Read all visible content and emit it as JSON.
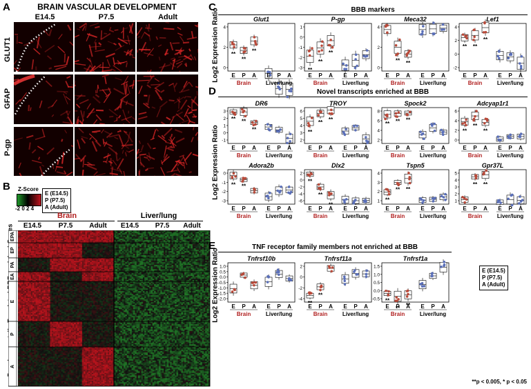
{
  "panels": {
    "a": "A",
    "b": "B",
    "c": "C",
    "d": "D",
    "e": "E"
  },
  "panel_a": {
    "title": "BRAIN VASCULAR DEVELOPMENT",
    "columns": [
      "E14.5",
      "P7.5",
      "Adult"
    ],
    "rows": [
      "GLUT1",
      "GFAP",
      "P-gp"
    ]
  },
  "panel_b": {
    "zscore_title": "Z-Score",
    "zscore_ticks": "-2 0 2 4",
    "legend_lines": [
      "E (E14.5)",
      "P (P7.5)",
      "A (Adult)"
    ],
    "group_brain": "Brain",
    "group_liver": "Liver/lung",
    "columns": [
      "E14.5",
      "P7.5",
      "Adult",
      "E14.5",
      "P7.5",
      "Adult"
    ],
    "row_groups": [
      "EPA",
      "EP",
      "PA",
      "EA",
      "E",
      "P",
      "A"
    ],
    "ylabel": "Developmentally Regulated BBB-enriched Genes",
    "colors": {
      "high": "#c0141e",
      "low": "#1f9a2a",
      "mid": "#111111"
    }
  },
  "ylabel_expr": "Log2 Expression Ratio",
  "x_cats": [
    "E",
    "P",
    "A",
    "E",
    "P",
    "A"
  ],
  "brain_label": "Brain",
  "liver_label": "Liver/lung",
  "colors": {
    "brain": "#b84a3a",
    "liver": "#5a6fb8",
    "brain_text": "#b01e1e"
  },
  "panel_c": {
    "title": "BBB markers"
  },
  "panel_d": {
    "title": "Novel transcripts enriched at BBB"
  },
  "panel_e": {
    "title": "TNF receptor family members not enriched at BBB",
    "legend_lines": [
      "E (E14.5)",
      "P (P7.5)",
      "A (Adult)"
    ]
  },
  "footnote": "**p < 0.005, * p < 0.05",
  "chart_data": [
    {
      "type": "box",
      "gene": "Glut1",
      "ticks": [
        "4",
        "2",
        "0"
      ],
      "ylim": [
        -1,
        5
      ],
      "medians": [
        2.3,
        1.6,
        2.8,
        -1.3,
        -3.2,
        -3.3
      ],
      "stars": [
        "**",
        "**",
        "**",
        "",
        "",
        ""
      ]
    },
    {
      "type": "box",
      "gene": "P-gp",
      "ticks": [
        "1",
        "0",
        "-1",
        "-2",
        "-3"
      ],
      "ylim": [
        -4,
        1.8
      ],
      "medians": [
        -2.2,
        -1.2,
        -0.3,
        -3.3,
        -2.7,
        -2.0
      ],
      "stars": [
        "**",
        "**",
        "**",
        "",
        "",
        ""
      ]
    },
    {
      "type": "box",
      "gene": "Meca32",
      "ticks": [
        "4",
        "2",
        "0"
      ],
      "ylim": [
        -1.5,
        5.5
      ],
      "medians": [
        4.6,
        2.0,
        1.0,
        4.6,
        4.7,
        4.8
      ],
      "stars": [
        "",
        "**",
        "**",
        "",
        "",
        ""
      ]
    },
    {
      "type": "box",
      "gene": "Lef1",
      "ticks": [
        "4",
        "2",
        "0",
        "-2"
      ],
      "ylim": [
        -3,
        5
      ],
      "medians": [
        2.6,
        3.0,
        4.3,
        -0.4,
        -0.6,
        -1.7
      ],
      "stars": [
        "**",
        "**",
        "**",
        "",
        "",
        ""
      ]
    },
    {
      "type": "box",
      "gene": "DR6",
      "ticks": [
        "3",
        "2",
        "1",
        "0",
        "-1"
      ],
      "ylim": [
        -1.7,
        3.3
      ],
      "medians": [
        2.7,
        2.7,
        1.2,
        0.6,
        0.2,
        -1.0
      ],
      "stars": [
        "**",
        "**",
        "**",
        "",
        "",
        ""
      ]
    },
    {
      "type": "box",
      "gene": "TROY",
      "ticks": [
        "6",
        "5",
        "4",
        "3",
        "2"
      ],
      "ylim": [
        1.5,
        7
      ],
      "medians": [
        4.9,
        6.1,
        6.6,
        3.4,
        3.9,
        2.2
      ],
      "stars": [
        "**",
        "**",
        "**",
        "",
        "",
        ""
      ]
    },
    {
      "type": "box",
      "gene": "Spock2",
      "ticks": [
        "8",
        "6",
        "4",
        "2"
      ],
      "ylim": [
        0.5,
        9
      ],
      "medians": [
        7.4,
        7.6,
        7.7,
        2.6,
        4.2,
        3.2
      ],
      "stars": [
        "**",
        "**",
        "**",
        "",
        "",
        ""
      ]
    },
    {
      "type": "box",
      "gene": "Adcyap1r1",
      "ticks": [
        "6",
        "4",
        "2",
        "0"
      ],
      "ylim": [
        -0.7,
        7.5
      ],
      "medians": [
        4.3,
        5.6,
        4.1,
        0.3,
        0.9,
        0.9
      ],
      "stars": [
        "**",
        "**",
        "**",
        "",
        "",
        ""
      ]
    },
    {
      "type": "box",
      "gene": "Adora2b",
      "ticks": [
        "0",
        "-1",
        "-2",
        "-3"
      ],
      "ylim": [
        -3.5,
        0.6
      ],
      "medians": [
        -0.1,
        -0.6,
        -1.9,
        -2.6,
        -1.9,
        -1.8
      ],
      "stars": [
        "**",
        "**",
        "",
        "",
        "",
        ""
      ]
    },
    {
      "type": "box",
      "gene": "Dlx2",
      "ticks": [
        "2",
        "0",
        "-2",
        "-4",
        "-6"
      ],
      "ylim": [
        -7,
        3
      ],
      "medians": [
        1.7,
        -2.0,
        -4.4,
        -5.7,
        -6.0,
        -5.9
      ],
      "stars": [
        "**",
        "**",
        "**",
        "",
        "",
        ""
      ]
    },
    {
      "type": "box",
      "gene": "Tspn5",
      "ticks": [
        "4",
        "3",
        "2",
        "1"
      ],
      "ylim": [
        0.5,
        4.8
      ],
      "medians": [
        2.0,
        3.2,
        3.7,
        1.0,
        1.1,
        1.4
      ],
      "stars": [
        "**",
        "**",
        "**",
        "",
        "",
        ""
      ]
    },
    {
      "type": "box",
      "gene": "Gpr37L",
      "ticks": [
        "5",
        "4",
        "3",
        "2",
        "1"
      ],
      "ylim": [
        0.5,
        5.8
      ],
      "medians": [
        1.2,
        4.7,
        5.0,
        0.8,
        1.2,
        1.1
      ],
      "stars": [
        "",
        "**",
        "**",
        "",
        "",
        ""
      ]
    },
    {
      "type": "box",
      "gene": "Tnfrsf10b",
      "ticks": [
        "1.0",
        "0.5",
        "0.0",
        "-0.5",
        "-1.0",
        "-1.5",
        "-2.0"
      ],
      "ylim": [
        -2.2,
        1.3
      ],
      "medians": [
        -1.0,
        0.2,
        -0.7,
        -0.4,
        0.3,
        -0.1
      ],
      "stars": [
        "",
        "",
        "",
        "",
        "",
        ""
      ]
    },
    {
      "type": "box",
      "gene": "Tnfrsf11a",
      "ticks": [
        "2",
        "0",
        "-2",
        "-4"
      ],
      "ylim": [
        -5,
        3.5
      ],
      "medians": [
        -3.6,
        -1.7,
        2.3,
        0.0,
        1.2,
        1.1
      ],
      "stars": [
        "**",
        "**",
        "",
        "",
        "",
        ""
      ]
    },
    {
      "type": "box",
      "gene": "Tnfrsf1a",
      "ticks": [
        "1.5",
        "1.0",
        "0.5",
        "0.0",
        "-0.5"
      ],
      "ylim": [
        -0.9,
        1.8
      ],
      "medians": [
        -0.3,
        -0.5,
        -0.4,
        0.3,
        0.9,
        1.5
      ],
      "stars": [
        "**",
        "**",
        "**",
        "",
        "",
        ""
      ]
    }
  ]
}
